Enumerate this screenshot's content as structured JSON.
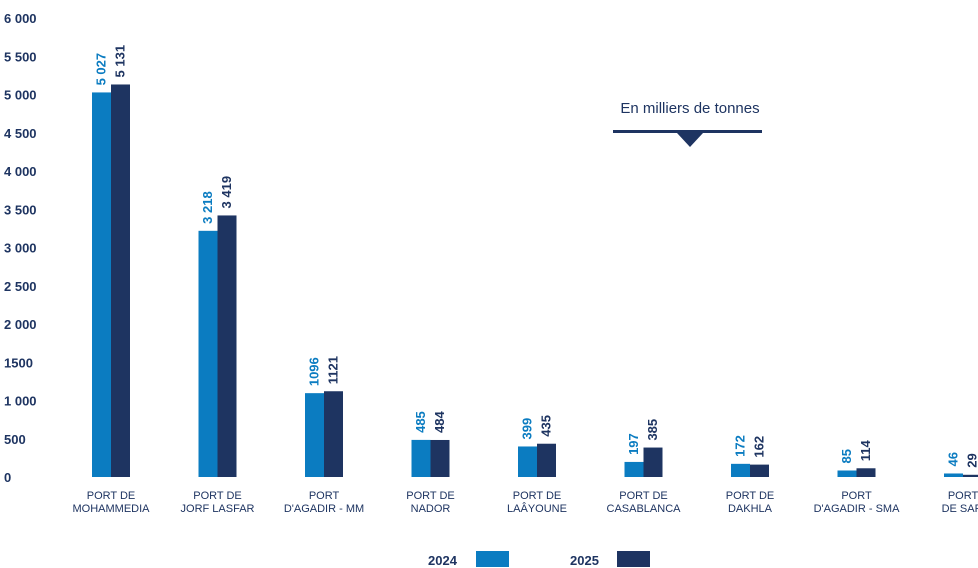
{
  "chart_data": {
    "type": "bar",
    "annotation": "En milliers de tonnes",
    "y_ticks": [
      "0",
      "500",
      "1 000",
      "1500",
      "2 000",
      "2 500",
      "3 000",
      "3 500",
      "4 000",
      "4 500",
      "5 000",
      "5 500",
      "6 000"
    ],
    "ylim": [
      0,
      6000
    ],
    "categories": [
      [
        "PORT DE",
        "MOHAMMEDIA"
      ],
      [
        "PORT DE",
        "JORF LASFAR"
      ],
      [
        "PORT",
        "D'AGADIR - MM"
      ],
      [
        "PORT DE",
        "NADOR"
      ],
      [
        "PORT DE",
        "LAÂYOUNE"
      ],
      [
        "PORT DE",
        "CASABLANCA"
      ],
      [
        "PORT DE",
        "DAKHLA"
      ],
      [
        "PORT",
        "D'AGADIR - SMA"
      ],
      [
        "PORT",
        "DE SAFI"
      ]
    ],
    "series": [
      {
        "name": "2024",
        "color": "#0b7cc1",
        "values": [
          5027,
          3218,
          1096,
          485,
          399,
          197,
          172,
          85,
          46
        ],
        "labels": [
          "5 027",
          "3 218",
          "1096",
          "485",
          "399",
          "197",
          "172",
          "85",
          "46"
        ]
      },
      {
        "name": "2025",
        "color": "#1e3461",
        "values": [
          5131,
          3419,
          1121,
          484,
          435,
          385,
          162,
          114,
          29
        ],
        "labels": [
          "5 131",
          "3 419",
          "1121",
          "484",
          "435",
          "385",
          "162",
          "114",
          "29"
        ]
      }
    ],
    "legend": "bottom",
    "grid": false
  }
}
